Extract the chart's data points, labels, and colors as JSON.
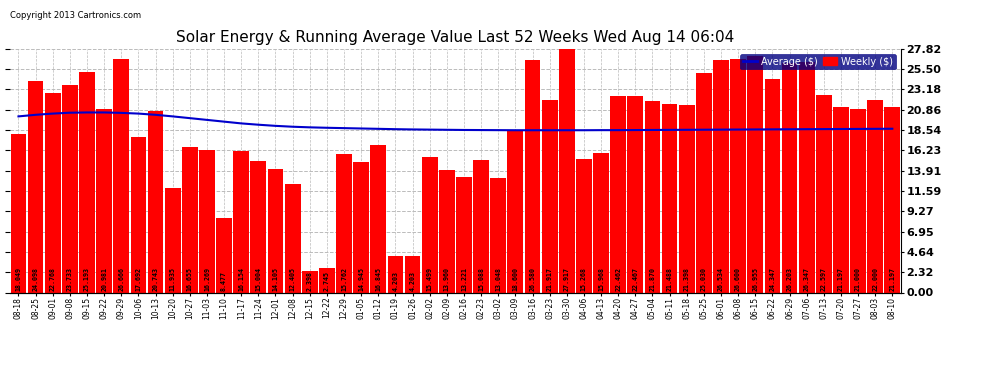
{
  "title": "Solar Energy & Running Average Value Last 52 Weeks Wed Aug 14 06:04",
  "copyright": "Copyright 2013 Cartronics.com",
  "bar_color": "#ff0000",
  "avg_line_color": "#0000cc",
  "background_color": "#ffffff",
  "plot_bg_color": "#ffffff",
  "grid_color": "#bbbbbb",
  "ylim": [
    0,
    27.82
  ],
  "yticks": [
    0.0,
    2.32,
    4.64,
    6.95,
    9.27,
    11.59,
    13.91,
    16.23,
    18.54,
    20.86,
    23.18,
    25.5,
    27.82
  ],
  "legend_avg_label": "Average ($)",
  "legend_weekly_label": "Weekly ($)",
  "categories": [
    "08-18",
    "08-25",
    "09-01",
    "09-08",
    "09-15",
    "09-22",
    "09-29",
    "10-06",
    "10-13",
    "10-20",
    "10-27",
    "11-03",
    "11-10",
    "11-17",
    "11-24",
    "12-01",
    "12-08",
    "12-15",
    "12-22",
    "12-29",
    "01-05",
    "01-12",
    "01-19",
    "01-26",
    "02-02",
    "02-09",
    "02-16",
    "02-23",
    "03-02",
    "03-09",
    "03-16",
    "03-23",
    "03-30",
    "04-06",
    "04-13",
    "04-20",
    "04-27",
    "05-04",
    "05-11",
    "05-18",
    "05-25",
    "06-01",
    "06-08",
    "06-15",
    "06-22",
    "06-29",
    "07-06",
    "07-13",
    "07-20",
    "07-27",
    "08-03",
    "08-10"
  ],
  "values": [
    18.049,
    24.098,
    22.768,
    23.733,
    25.193,
    20.981,
    26.666,
    17.692,
    20.743,
    11.935,
    16.655,
    16.269,
    8.477,
    16.154,
    15.004,
    14.105,
    12.405,
    2.398,
    2.745,
    15.762,
    14.945,
    16.845,
    4.203,
    4.203,
    15.499,
    13.96,
    13.221,
    15.088,
    13.048,
    18.6,
    26.58,
    21.917,
    27.917,
    15.268,
    15.968,
    22.462,
    22.467,
    21.87,
    21.488,
    21.398,
    25.03,
    26.534,
    26.6,
    26.955,
    24.347,
    26.203,
    26.347,
    22.597,
    21.197,
    21.0,
    22.0,
    21.197
  ],
  "avg_values": [
    20.1,
    20.28,
    20.42,
    20.52,
    20.55,
    20.55,
    20.5,
    20.42,
    20.28,
    20.1,
    19.9,
    19.7,
    19.5,
    19.3,
    19.15,
    19.02,
    18.92,
    18.85,
    18.8,
    18.76,
    18.72,
    18.68,
    18.64,
    18.61,
    18.59,
    18.57,
    18.55,
    18.54,
    18.53,
    18.52,
    18.52,
    18.52,
    18.52,
    18.52,
    18.53,
    18.53,
    18.54,
    18.55,
    18.56,
    18.57,
    18.58,
    18.59,
    18.6,
    18.61,
    18.62,
    18.63,
    18.64,
    18.65,
    18.66,
    18.67,
    18.68,
    18.69
  ],
  "label_fontsize": 4.8,
  "xlabel_fontsize": 5.5,
  "ylabel_fontsize": 8.0,
  "title_fontsize": 11
}
